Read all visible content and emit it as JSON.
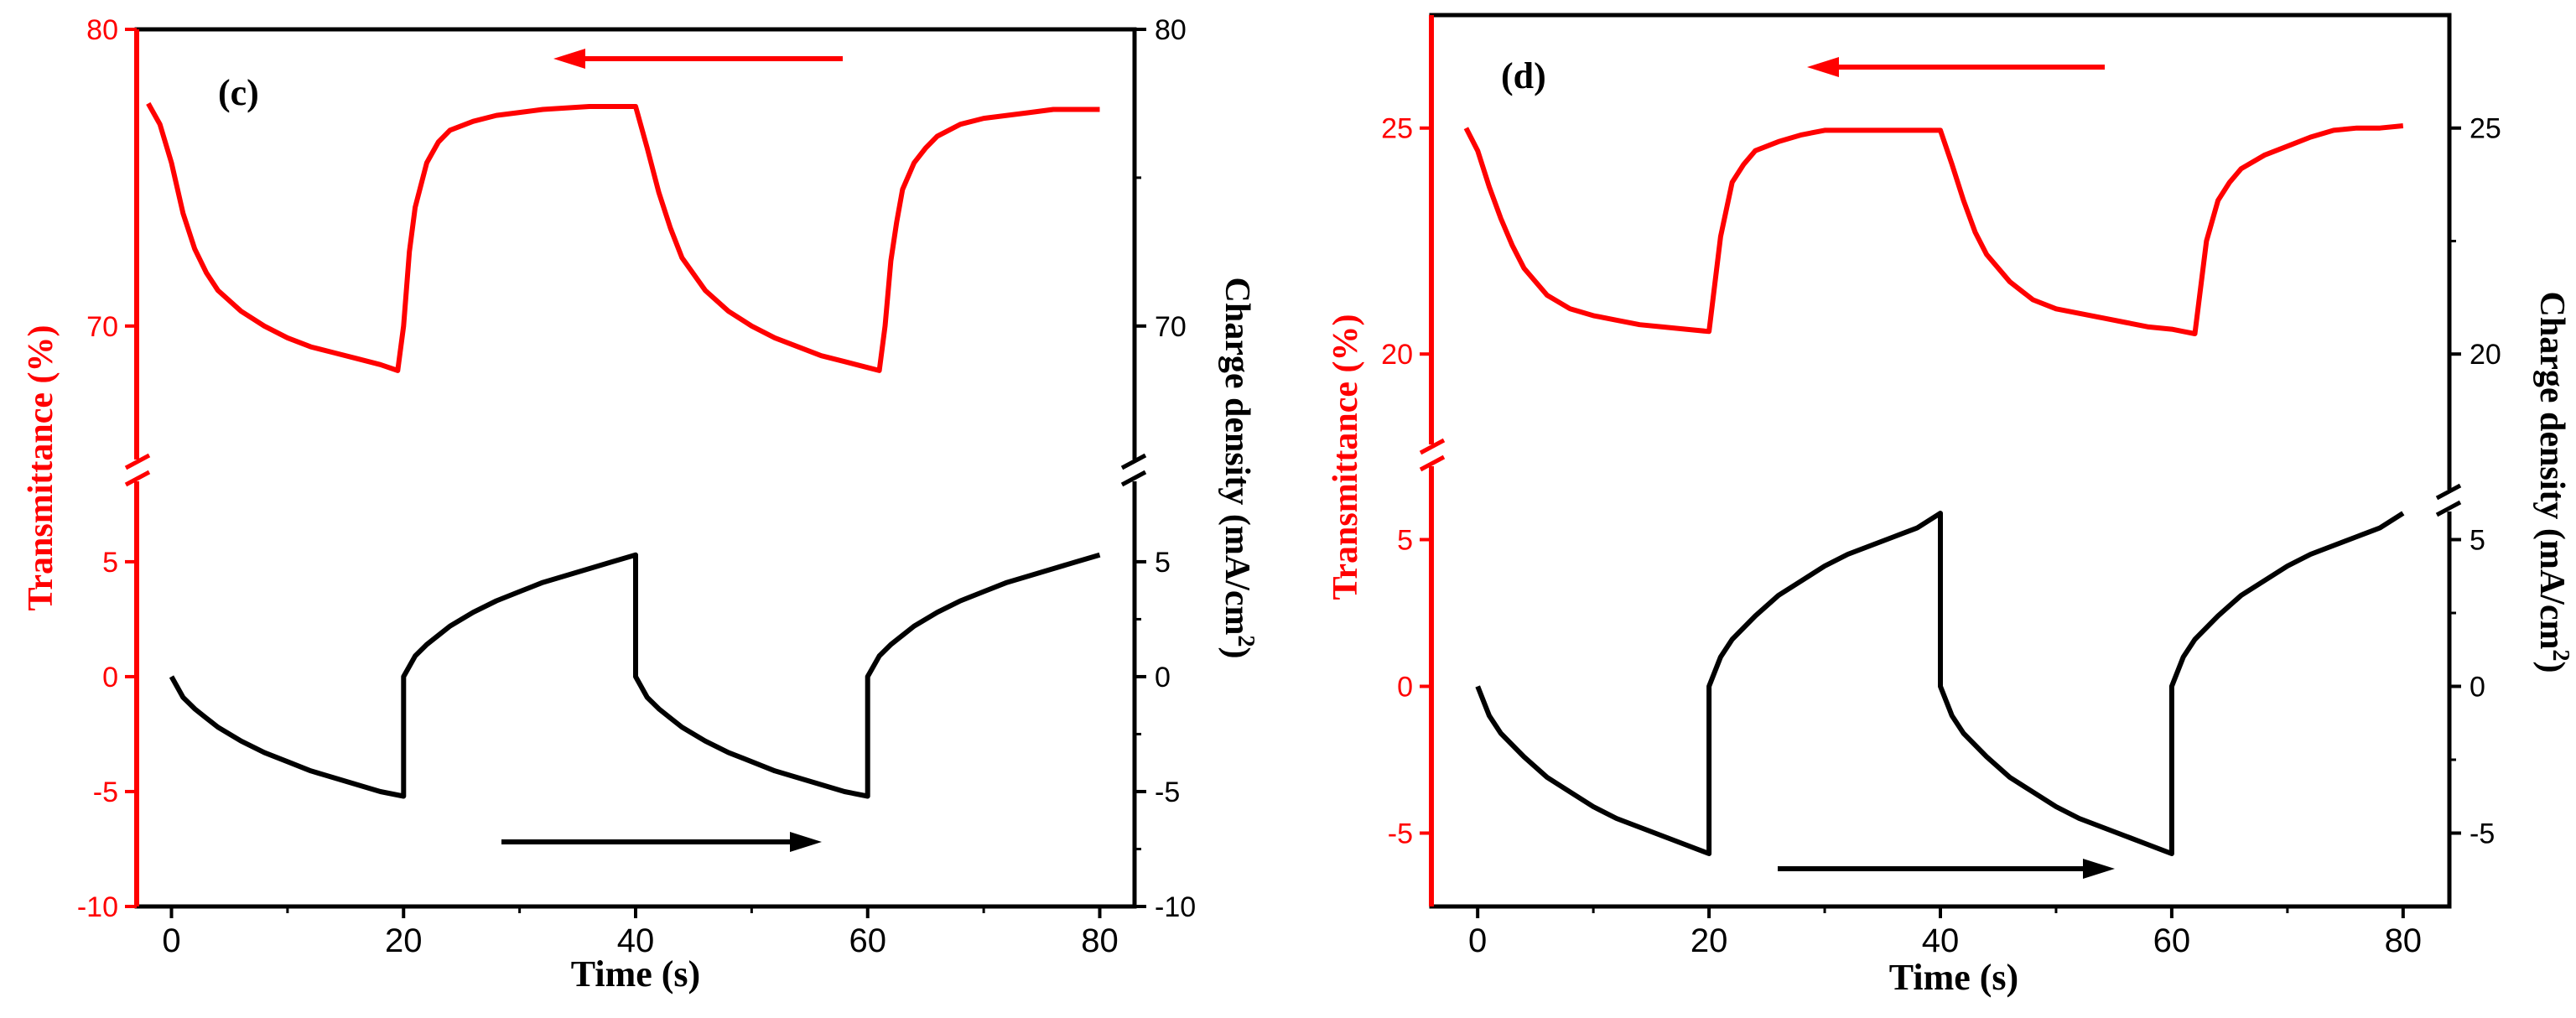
{
  "chart_data": [
    {
      "type": "line",
      "panel_label": "(c)",
      "xlabel": "Time (s)",
      "ylabel_left": "Transmittance (%)",
      "ylabel_right": "Charge density (mA/cm",
      "ylabel_right_sup": "2",
      "ylabel_right_close": ")",
      "xlim": [
        -3,
        83
      ],
      "x_ticks": [
        0,
        20,
        40,
        60,
        80
      ],
      "upper_segment": {
        "ylim": [
          65.5,
          80
        ],
        "left_ticks": [
          80,
          70
        ],
        "right_ticks": [
          80,
          70
        ]
      },
      "lower_segment": {
        "ylim": [
          -10,
          8.5
        ],
        "left_ticks": [
          5,
          0,
          -5,
          -10
        ],
        "right_ticks": [
          5,
          0,
          -5,
          -10
        ]
      },
      "series": [
        {
          "name": "Transmittance",
          "color": "#ff0000",
          "axis": "upper",
          "x": [
            -2,
            -1,
            0,
            1,
            2,
            3,
            4,
            6,
            8,
            10,
            12,
            14,
            16,
            18,
            19.5,
            20,
            20.5,
            21,
            22,
            23,
            24,
            26,
            28,
            30,
            32,
            34,
            36,
            38,
            40,
            41,
            42,
            43,
            44,
            46,
            48,
            50,
            52,
            54,
            56,
            58,
            60,
            61,
            61.5,
            62,
            62.5,
            63,
            64,
            65,
            66,
            68,
            70,
            72,
            74,
            76,
            78,
            80
          ],
          "y": [
            77.5,
            76.8,
            75.5,
            73.8,
            72.6,
            71.8,
            71.2,
            70.5,
            70.0,
            69.6,
            69.3,
            69.1,
            68.9,
            68.7,
            68.5,
            70.0,
            72.5,
            74.0,
            75.5,
            76.2,
            76.6,
            76.9,
            77.1,
            77.2,
            77.3,
            77.35,
            77.4,
            77.4,
            77.4,
            76.0,
            74.5,
            73.3,
            72.3,
            71.2,
            70.5,
            70.0,
            69.6,
            69.3,
            69.0,
            68.8,
            68.6,
            68.5,
            70.0,
            72.2,
            73.5,
            74.6,
            75.5,
            76.0,
            76.4,
            76.8,
            77.0,
            77.1,
            77.2,
            77.3,
            77.3,
            77.3
          ]
        },
        {
          "name": "Charge density",
          "color": "#000000",
          "axis": "lower",
          "x": [
            0,
            1,
            2,
            3,
            4,
            6,
            8,
            10,
            12,
            14,
            16,
            18,
            20,
            20,
            21,
            22,
            23,
            24,
            26,
            28,
            30,
            32,
            34,
            36,
            38,
            40,
            40,
            41,
            42,
            43,
            44,
            46,
            48,
            50,
            52,
            54,
            56,
            58,
            60,
            60,
            61,
            62,
            63,
            64,
            66,
            68,
            70,
            72,
            74,
            76,
            78,
            80
          ],
          "y": [
            0,
            -0.9,
            -1.4,
            -1.8,
            -2.2,
            -2.8,
            -3.3,
            -3.7,
            -4.1,
            -4.4,
            -4.7,
            -5.0,
            -5.2,
            0,
            0.9,
            1.4,
            1.8,
            2.2,
            2.8,
            3.3,
            3.7,
            4.1,
            4.4,
            4.7,
            5.0,
            5.3,
            0,
            -0.9,
            -1.4,
            -1.8,
            -2.2,
            -2.8,
            -3.3,
            -3.7,
            -4.1,
            -4.4,
            -4.7,
            -5.0,
            -5.2,
            0,
            0.9,
            1.4,
            1.8,
            2.2,
            2.8,
            3.3,
            3.7,
            4.1,
            4.4,
            4.7,
            5.0,
            5.3
          ]
        }
      ]
    },
    {
      "type": "line",
      "panel_label": "(d)",
      "xlabel": "Time (s)",
      "ylabel_left": "Transmittance (%)",
      "ylabel_right": "Charge density (mA/cm",
      "ylabel_right_sup": "2",
      "ylabel_right_close": ")",
      "xlim": [
        -4,
        84
      ],
      "x_ticks": [
        0,
        20,
        40,
        60,
        80
      ],
      "upper_segment": {
        "ylim": [
          18,
          27.5
        ],
        "left_ticks": [
          25,
          20
        ],
        "right_ticks": [
          25,
          20
        ]
      },
      "lower_segment": {
        "ylim": [
          -7.5,
          7.5
        ],
        "left_ticks": [
          5,
          0,
          -5
        ],
        "right_ticks": [
          5,
          0,
          -5
        ]
      },
      "series": [
        {
          "name": "Transmittance",
          "color": "#ff0000",
          "axis": "upper",
          "x": [
            -1,
            0,
            1,
            2,
            3,
            4,
            6,
            8,
            10,
            12,
            14,
            16,
            18,
            20,
            21,
            22,
            23,
            24,
            26,
            28,
            30,
            32,
            34,
            36,
            38,
            40,
            41,
            42,
            43,
            44,
            46,
            48,
            50,
            52,
            54,
            56,
            58,
            60,
            61,
            62,
            63,
            64,
            65,
            66,
            68,
            70,
            72,
            74,
            76,
            78,
            80
          ],
          "y": [
            25.0,
            24.5,
            23.7,
            23.0,
            22.4,
            21.9,
            21.3,
            21.0,
            20.85,
            20.75,
            20.65,
            20.6,
            20.55,
            20.5,
            22.6,
            23.8,
            24.2,
            24.5,
            24.7,
            24.85,
            24.95,
            24.95,
            24.95,
            24.95,
            24.95,
            24.95,
            24.2,
            23.4,
            22.7,
            22.2,
            21.6,
            21.2,
            21.0,
            20.9,
            20.8,
            20.7,
            20.6,
            20.55,
            20.5,
            20.45,
            22.5,
            23.4,
            23.8,
            24.1,
            24.4,
            24.6,
            24.8,
            24.95,
            25.0,
            25.0,
            25.05
          ]
        },
        {
          "name": "Charge density",
          "color": "#000000",
          "axis": "lower",
          "x": [
            0,
            1,
            2,
            3,
            4,
            6,
            8,
            10,
            12,
            14,
            16,
            18,
            20,
            20,
            21,
            22,
            23,
            24,
            26,
            28,
            30,
            32,
            34,
            36,
            38,
            40,
            40,
            41,
            42,
            43,
            44,
            46,
            48,
            50,
            52,
            54,
            56,
            58,
            60,
            60,
            61,
            62,
            63,
            64,
            66,
            68,
            70,
            72,
            74,
            76,
            78,
            80
          ],
          "y": [
            0,
            -1.0,
            -1.6,
            -2.0,
            -2.4,
            -3.1,
            -3.6,
            -4.1,
            -4.5,
            -4.8,
            -5.1,
            -5.4,
            -5.7,
            0,
            1.0,
            1.6,
            2.0,
            2.4,
            3.1,
            3.6,
            4.1,
            4.5,
            4.8,
            5.1,
            5.4,
            5.9,
            0,
            -1.0,
            -1.6,
            -2.0,
            -2.4,
            -3.1,
            -3.6,
            -4.1,
            -4.5,
            -4.8,
            -5.1,
            -5.4,
            -5.7,
            0,
            1.0,
            1.6,
            2.0,
            2.4,
            3.1,
            3.6,
            4.1,
            4.5,
            4.8,
            5.1,
            5.4,
            5.9
          ]
        }
      ]
    }
  ]
}
